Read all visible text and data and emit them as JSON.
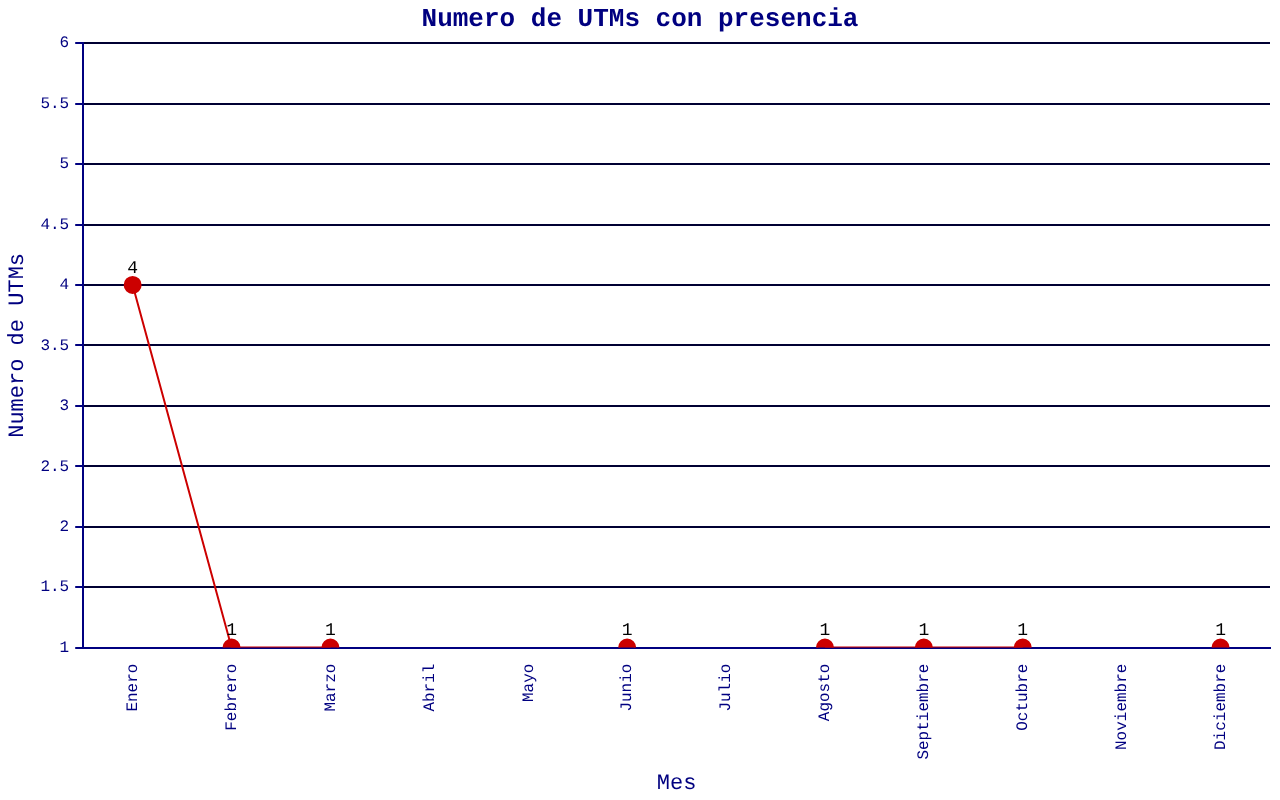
{
  "chart_data": {
    "type": "line",
    "title": "Numero de UTMs con presencia",
    "xlabel": "Mes",
    "ylabel": "Numero de UTMs",
    "categories": [
      "Enero",
      "Febrero",
      "Marzo",
      "Abril",
      "Mayo",
      "Junio",
      "Julio",
      "Agosto",
      "Septiembre",
      "Octubre",
      "Noviembre",
      "Diciembre"
    ],
    "series": [
      {
        "color": "#cc0000",
        "values": [
          4,
          1,
          1,
          null,
          null,
          1,
          null,
          1,
          1,
          1,
          null,
          1
        ]
      }
    ],
    "ylim": [
      1,
      6
    ],
    "yticks": [
      1,
      1.5,
      2,
      2.5,
      3,
      3.5,
      4,
      4.5,
      5,
      5.5,
      6
    ],
    "grid": "y",
    "marker": "circle",
    "line_style": "solid",
    "data_labels": true,
    "legend": false
  }
}
